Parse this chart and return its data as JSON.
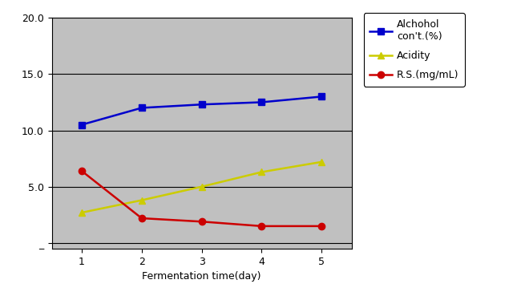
{
  "x": [
    1,
    2,
    3,
    4,
    5
  ],
  "alcohol": [
    10.5,
    12.0,
    12.3,
    12.5,
    13.0
  ],
  "acidity": [
    2.7,
    3.8,
    5.0,
    6.3,
    7.2
  ],
  "rs": [
    6.4,
    2.2,
    1.9,
    1.5,
    1.5
  ],
  "alcohol_color": "#0000CC",
  "acidity_color": "#CCCC00",
  "rs_color": "#CC0000",
  "plot_bg_color": "#C0C0C0",
  "fig_bg_color": "#FFFFFF",
  "xlabel": "Fermentation time(day)",
  "ylim_min": -0.5,
  "ylim_max": 20.0,
  "xlim_min": 0.5,
  "xlim_max": 5.5,
  "yticks": [
    0,
    5.0,
    10.0,
    15.0,
    20.0
  ],
  "ytick_labels": [
    "_",
    "5.0",
    "10.0",
    "15.0",
    "20.0"
  ],
  "legend_alcohol": "Alchohol\ncon't.(%)",
  "legend_acidity": "Acidity",
  "legend_rs": "R.S.(mg/mL)",
  "axis_fontsize": 9,
  "legend_fontsize": 9,
  "linewidth": 1.8,
  "markersize": 6
}
